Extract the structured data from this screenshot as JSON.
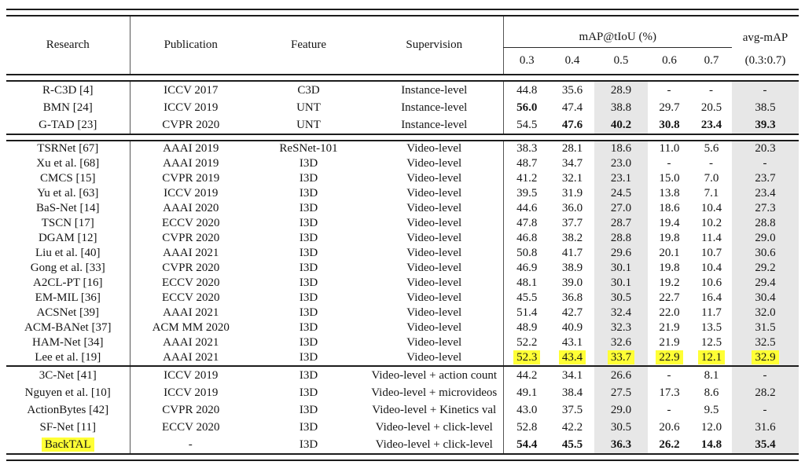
{
  "table": {
    "header": {
      "research": "Research",
      "publication": "Publication",
      "feature": "Feature",
      "supervision": "Supervision",
      "map_group": "mAP@tIoU (%)",
      "iou_ticks": [
        "0.3",
        "0.4",
        "0.5",
        "0.6",
        "0.7"
      ],
      "avg_label": "avg-mAP",
      "avg_sub": "(0.3:0.7)"
    },
    "colors": {
      "column_shade": "#e7e7e7",
      "highlight_yellow": "#ffff35",
      "rule_color": "#1c1c1c"
    },
    "shaded_value_columns": [
      2,
      5
    ],
    "groups": [
      {
        "rule_before": "double",
        "density": "wide",
        "rows": [
          {
            "research": "R-C3D [4]",
            "publication": "ICCV 2017",
            "feature": "C3D",
            "supervision": "Instance-level",
            "values": [
              "44.8",
              "35.6",
              "28.9",
              "-",
              "-",
              "-"
            ],
            "bold": []
          },
          {
            "research": "BMN [24]",
            "publication": "ICCV 2019",
            "feature": "UNT",
            "supervision": "Instance-level",
            "values": [
              "56.0",
              "47.4",
              "38.8",
              "29.7",
              "20.5",
              "38.5"
            ],
            "bold": [
              0
            ]
          },
          {
            "research": "G-TAD [23]",
            "publication": "CVPR 2020",
            "feature": "UNT",
            "supervision": "Instance-level",
            "values": [
              "54.5",
              "47.6",
              "40.2",
              "30.8",
              "23.4",
              "39.3"
            ],
            "bold": [
              1,
              2,
              3,
              4,
              5
            ]
          }
        ]
      },
      {
        "rule_before": "double",
        "density": "dense",
        "rows": [
          {
            "research": "TSRNet [67]",
            "publication": "AAAI 2019",
            "feature": "ReSNet-101",
            "supervision": "Video-level",
            "values": [
              "38.3",
              "28.1",
              "18.6",
              "11.0",
              "5.6",
              "20.3"
            ],
            "bold": []
          },
          {
            "research": "Xu et al. [68]",
            "publication": "AAAI 2019",
            "feature": "I3D",
            "supervision": "Video-level",
            "values": [
              "48.7",
              "34.7",
              "23.0",
              "-",
              "-",
              "-"
            ],
            "bold": []
          },
          {
            "research": "CMCS [15]",
            "publication": "CVPR 2019",
            "feature": "I3D",
            "supervision": "Video-level",
            "values": [
              "41.2",
              "32.1",
              "23.1",
              "15.0",
              "7.0",
              "23.7"
            ],
            "bold": []
          },
          {
            "research": "Yu et al. [63]",
            "publication": "ICCV 2019",
            "feature": "I3D",
            "supervision": "Video-level",
            "values": [
              "39.5",
              "31.9",
              "24.5",
              "13.8",
              "7.1",
              "23.4"
            ],
            "bold": []
          },
          {
            "research": "BaS-Net [14]",
            "publication": "AAAI 2020",
            "feature": "I3D",
            "supervision": "Video-level",
            "values": [
              "44.6",
              "36.0",
              "27.0",
              "18.6",
              "10.4",
              "27.3"
            ],
            "bold": []
          },
          {
            "research": "TSCN [17]",
            "publication": "ECCV 2020",
            "feature": "I3D",
            "supervision": "Video-level",
            "values": [
              "47.8",
              "37.7",
              "28.7",
              "19.4",
              "10.2",
              "28.8"
            ],
            "bold": []
          },
          {
            "research": "DGAM [12]",
            "publication": "CVPR 2020",
            "feature": "I3D",
            "supervision": "Video-level",
            "values": [
              "46.8",
              "38.2",
              "28.8",
              "19.8",
              "11.4",
              "29.0"
            ],
            "bold": []
          },
          {
            "research": "Liu et al. [40]",
            "publication": "AAAI 2021",
            "feature": "I3D",
            "supervision": "Video-level",
            "values": [
              "50.8",
              "41.7",
              "29.6",
              "20.1",
              "10.7",
              "30.6"
            ],
            "bold": []
          },
          {
            "research": "Gong et al. [33]",
            "publication": "CVPR 2020",
            "feature": "I3D",
            "supervision": "Video-level",
            "values": [
              "46.9",
              "38.9",
              "30.1",
              "19.8",
              "10.4",
              "29.2"
            ],
            "bold": []
          },
          {
            "research": "A2CL-PT [16]",
            "publication": "ECCV 2020",
            "feature": "I3D",
            "supervision": "Video-level",
            "values": [
              "48.1",
              "39.0",
              "30.1",
              "19.2",
              "10.6",
              "29.4"
            ],
            "bold": []
          },
          {
            "research": "EM-MIL [36]",
            "publication": "ECCV 2020",
            "feature": "I3D",
            "supervision": "Video-level",
            "values": [
              "45.5",
              "36.8",
              "30.5",
              "22.7",
              "16.4",
              "30.4"
            ],
            "bold": []
          },
          {
            "research": "ACSNet [39]",
            "publication": "AAAI 2021",
            "feature": "I3D",
            "supervision": "Video-level",
            "values": [
              "51.4",
              "42.7",
              "32.4",
              "22.0",
              "11.7",
              "32.0"
            ],
            "bold": []
          },
          {
            "research": "ACM-BANet [37]",
            "publication": "ACM MM 2020",
            "feature": "I3D",
            "supervision": "Video-level",
            "values": [
              "48.9",
              "40.9",
              "32.3",
              "21.9",
              "13.5",
              "31.5"
            ],
            "bold": []
          },
          {
            "research": "HAM-Net [34]",
            "publication": "AAAI 2021",
            "feature": "I3D",
            "supervision": "Video-level",
            "values": [
              "52.2",
              "43.1",
              "32.6",
              "21.9",
              "12.5",
              "32.5"
            ],
            "bold": []
          },
          {
            "research": "Lee et al. [19]",
            "publication": "AAAI 2021",
            "feature": "I3D",
            "supervision": "Video-level",
            "values": [
              "52.3",
              "43.4",
              "33.7",
              "22.9",
              "12.1",
              "32.9"
            ],
            "bold": [],
            "highlight_values": true
          }
        ]
      },
      {
        "rule_before": "single",
        "density": "wide",
        "rows": [
          {
            "research": "3C-Net [41]",
            "publication": "ICCV 2019",
            "feature": "I3D",
            "supervision": "Video-level + action count",
            "values": [
              "44.2",
              "34.1",
              "26.6",
              "-",
              "8.1",
              "-"
            ],
            "bold": []
          },
          {
            "research": "Nguyen et al. [10]",
            "publication": "ICCV 2019",
            "feature": "I3D",
            "supervision": "Video-level + microvideos",
            "values": [
              "49.1",
              "38.4",
              "27.5",
              "17.3",
              "8.6",
              "28.2"
            ],
            "bold": []
          },
          {
            "research": "ActionBytes [42]",
            "publication": "CVPR 2020",
            "feature": "I3D",
            "supervision": "Video-level + Kinetics val",
            "values": [
              "43.0",
              "37.5",
              "29.0",
              "-",
              "9.5",
              "-"
            ],
            "bold": []
          },
          {
            "research": "SF-Net [11]",
            "publication": "ECCV 2020",
            "feature": "I3D",
            "supervision": "Video-level + click-level",
            "values": [
              "52.8",
              "42.2",
              "30.5",
              "20.6",
              "12.0",
              "31.6"
            ],
            "bold": []
          },
          {
            "research": "BackTAL",
            "publication": "-",
            "feature": "I3D",
            "supervision": "Video-level + click-level",
            "values": [
              "54.4",
              "45.5",
              "36.3",
              "26.2",
              "14.8",
              "35.4"
            ],
            "bold": [
              0,
              1,
              2,
              3,
              4,
              5
            ],
            "research_highlight": true
          }
        ]
      }
    ]
  }
}
